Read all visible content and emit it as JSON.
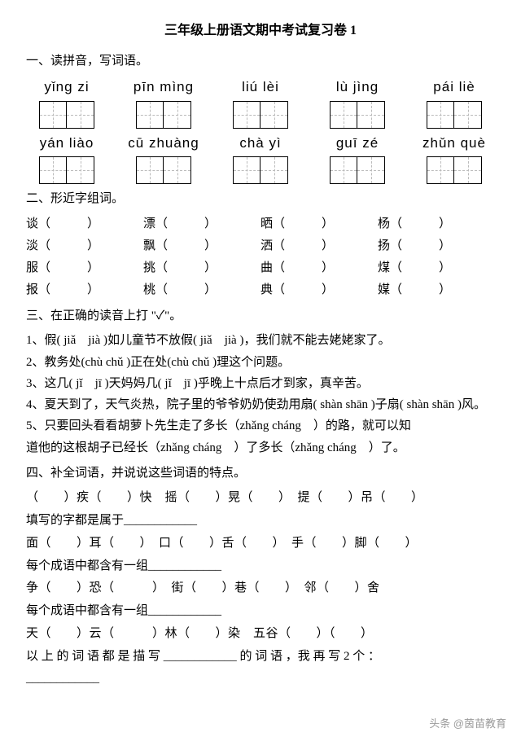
{
  "title": "三年级上册语文期中考试复习卷 1",
  "s1": {
    "head": "一、读拼音，写词语。",
    "row1": [
      "yǐng zi",
      "pīn mìng",
      "liú  lèi",
      "lù  jìng",
      "pái liè"
    ],
    "row2": [
      "yán liào",
      "cū zhuàng",
      "chà yì",
      "guī zé",
      "zhǔn què"
    ]
  },
  "s2": {
    "head": "二、形近字组词。",
    "rows": [
      [
        "谈（　　　）",
        "漂（　　　）",
        "晒（　　　）",
        "杨（　　　）"
      ],
      [
        "淡（　　　）",
        "飘（　　　）",
        "洒（　　　）",
        "扬（　　　）"
      ],
      [
        "服（　　　）",
        "挑（　　　）",
        "曲（　　　）",
        "煤（　　　）"
      ],
      [
        "报（　　　）",
        "桃（　　　）",
        "典（　　　）",
        "媒（　　　）"
      ]
    ]
  },
  "s3": {
    "head": "三、在正确的读音上打 \"✓\"。",
    "l1": "1、假( jiǎ　jià )如儿童节不放假( jiǎ　jià )，我们就不能去姥姥家了。",
    "l2": "2、教务处(chù chǔ )正在处(chù chǔ )理这个问题。",
    "l3": "3、这几( jǐ　jī )天妈妈几( jǐ　jī )乎晚上十点后才到家，真辛苦。",
    "l4": "4、夏天到了，天气炎热，院子里的爷爷奶奶使劲用扇( shàn shān )子扇( shàn shān )风。",
    "l5a": "5、只要回头看看胡萝卜先生走了多长（zhǎng cháng　）的路，就可以知",
    "l5b": "道他的这根胡子已经长（zhǎng cháng　）了多长（zhǎng cháng　）了。"
  },
  "s4": {
    "head": "四、补全词语，并说说这些词语的特点。",
    "l1": "（　　）疾（　　）快　摇（　　）晃（　　）　提（　　）吊（　　）",
    "l2": "填写的字都是属于____________",
    "l3": "面（　　）耳（　　）　口（　　）舌（　　）　手（　　）脚（　　）",
    "l4": "每个成语中都含有一组____________",
    "l5": "争（　　）恐（　　　）　街（　　）巷（　　）　邻（　　）舍",
    "l6": "每个成语中都含有一组____________",
    "l7": "天（　　）云（　　　）林（　　）染　五谷（　　）（　　）",
    "l8": "以 上 的 词 语 都 是 描 写 ____________ 的 词 语 ，我 再 写 2 个 ：",
    "l9": "____________"
  },
  "watermark": "头条 @茵苗教育"
}
